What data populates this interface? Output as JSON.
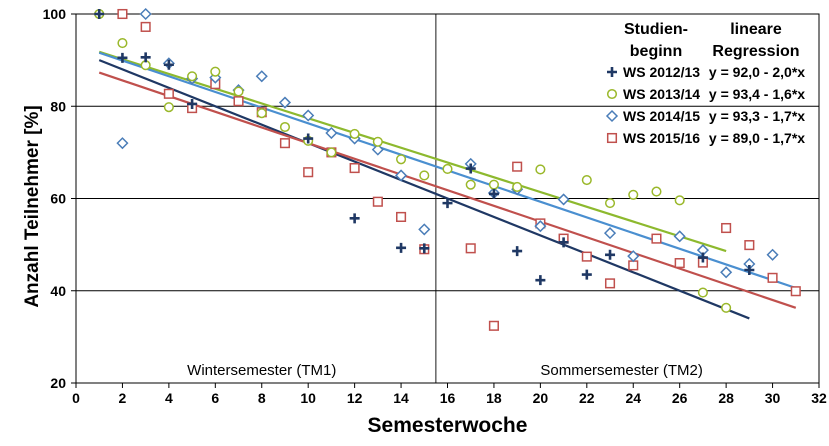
{
  "chart_data": {
    "type": "scatter",
    "xlabel": "Semesterwoche",
    "ylabel": "Anzahl Teilnehmer [%]",
    "xlim": [
      0,
      32
    ],
    "ylim": [
      20,
      100
    ],
    "x_ticks": [
      0,
      2,
      4,
      6,
      8,
      10,
      12,
      14,
      16,
      18,
      20,
      22,
      24,
      26,
      28,
      30,
      32
    ],
    "y_ticks": [
      20,
      40,
      60,
      80,
      100
    ],
    "grid": "horizontal at 40, 60, 80, 100; vertical divider at x=15.5",
    "legend": {
      "placement": "top-right",
      "col1_header": "Studien-\nbeginn",
      "col2_header": "lineare\nRegression",
      "col1_header_lines": [
        "Studien-",
        "beginn"
      ],
      "col2_header_lines": [
        "lineare",
        "Regression"
      ]
    },
    "region_labels": [
      {
        "text": "Wintersemester (TM1)",
        "x_center": 8
      },
      {
        "text": "Sommersemester (TM2)",
        "x_center": 23.5
      }
    ],
    "divider_x": 15.5,
    "series": [
      {
        "name": "WS 2012/13",
        "regression_label": "y = 92,0 - 2,0*x",
        "marker": "plus",
        "color": "#1f3864",
        "line_color": "#1f3864",
        "regression": {
          "intercept": 92.0,
          "slope": -2.0,
          "x_range": [
            1,
            29
          ]
        },
        "points": [
          [
            1,
            100
          ],
          [
            2,
            90.5
          ],
          [
            3,
            90.6
          ],
          [
            4,
            89
          ],
          [
            5,
            80.5
          ],
          [
            10,
            73
          ],
          [
            12,
            55.7
          ],
          [
            14,
            49.3
          ],
          [
            15,
            49.2
          ],
          [
            16,
            59
          ],
          [
            17,
            66.5
          ],
          [
            18,
            61
          ],
          [
            19,
            48.6
          ],
          [
            20,
            42.3
          ],
          [
            21,
            50.5
          ],
          [
            22,
            43.5
          ],
          [
            23,
            47.8
          ],
          [
            27,
            47.2
          ],
          [
            29,
            44.5
          ]
        ]
      },
      {
        "name": "WS 2013/14",
        "regression_label": "y = 93,4 - 1,6*x",
        "marker": "circle",
        "color": "#9ab82a",
        "line_color": "#8db92e",
        "regression": {
          "intercept": 93.4,
          "slope": -1.6,
          "x_range": [
            1,
            28
          ]
        },
        "points": [
          [
            1,
            100
          ],
          [
            2,
            93.7
          ],
          [
            3,
            88.9
          ],
          [
            4,
            79.8
          ],
          [
            5,
            86.5
          ],
          [
            6,
            87.5
          ],
          [
            7,
            83.2
          ],
          [
            8,
            78.5
          ],
          [
            9,
            75.5
          ],
          [
            10,
            72.5
          ],
          [
            11,
            70
          ],
          [
            12,
            74
          ],
          [
            13,
            72.3
          ],
          [
            14,
            68.5
          ],
          [
            15,
            65
          ],
          [
            16,
            66.4
          ],
          [
            17,
            63
          ],
          [
            18,
            63
          ],
          [
            19,
            62.5
          ],
          [
            20,
            66.3
          ],
          [
            22,
            64
          ],
          [
            23,
            59
          ],
          [
            24,
            60.8
          ],
          [
            25,
            61.5
          ],
          [
            26,
            59.6
          ],
          [
            27,
            39.6
          ],
          [
            28,
            36.3
          ]
        ]
      },
      {
        "name": "WS 2014/15",
        "regression_label": "y = 93,3 - 1,7*x",
        "marker": "diamond",
        "color": "#4a7db8",
        "line_color": "#4a8fd0",
        "regression": {
          "intercept": 93.3,
          "slope": -1.7,
          "x_range": [
            1,
            31
          ]
        },
        "points": [
          [
            2,
            72
          ],
          [
            3,
            100
          ],
          [
            4,
            89.3
          ],
          [
            5,
            86
          ],
          [
            6,
            86.2
          ],
          [
            7,
            83.5
          ],
          [
            8,
            86.5
          ],
          [
            9,
            80.8
          ],
          [
            10,
            78
          ],
          [
            11,
            74.2
          ],
          [
            12,
            73
          ],
          [
            13,
            70.6
          ],
          [
            14,
            65
          ],
          [
            15,
            53.3
          ],
          [
            17,
            67.5
          ],
          [
            18,
            61.2
          ],
          [
            19,
            62
          ],
          [
            20,
            54
          ],
          [
            21,
            59.8
          ],
          [
            23,
            52.5
          ],
          [
            24,
            47.5
          ],
          [
            26,
            51.8
          ],
          [
            27,
            48.8
          ],
          [
            28,
            44
          ],
          [
            29,
            45.8
          ],
          [
            30,
            47.8
          ]
        ]
      },
      {
        "name": "WS 2015/16",
        "regression_label": "y = 89,0 - 1,7*x",
        "marker": "square",
        "color": "#c0504d",
        "line_color": "#c0504d",
        "regression": {
          "intercept": 89.0,
          "slope": -1.7,
          "x_range": [
            1,
            31
          ]
        },
        "points": [
          [
            2,
            100
          ],
          [
            3,
            97.2
          ],
          [
            4,
            82.7
          ],
          [
            5,
            79.6
          ],
          [
            6,
            84.8
          ],
          [
            7,
            81.1
          ],
          [
            8,
            78.7
          ],
          [
            9,
            72
          ],
          [
            10,
            65.7
          ],
          [
            11,
            70
          ],
          [
            12,
            66.6
          ],
          [
            13,
            59.3
          ],
          [
            14,
            56
          ],
          [
            15,
            49
          ],
          [
            17,
            49.2
          ],
          [
            18,
            32.4
          ],
          [
            19,
            66.9
          ],
          [
            20,
            54.6
          ],
          [
            21,
            51.3
          ],
          [
            22,
            47.4
          ],
          [
            23,
            41.6
          ],
          [
            24,
            45.5
          ],
          [
            25,
            51.3
          ],
          [
            26,
            46
          ],
          [
            27,
            46.1
          ],
          [
            28,
            53.6
          ],
          [
            29,
            49.9
          ],
          [
            30,
            42.8
          ],
          [
            31,
            39.9
          ]
        ]
      }
    ]
  }
}
